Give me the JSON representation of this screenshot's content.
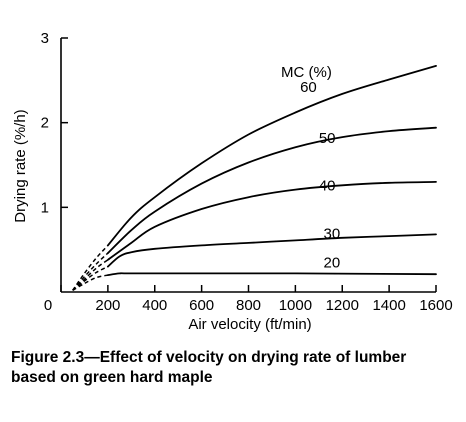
{
  "chart_data": {
    "type": "line",
    "title": "",
    "xlabel": "Air velocity (ft/min)",
    "ylabel": "Drying rate (%/h)",
    "xlim": [
      0,
      1600
    ],
    "ylim": [
      0,
      3
    ],
    "x_ticks": [
      0,
      200,
      400,
      600,
      800,
      1000,
      1200,
      1400,
      1600
    ],
    "y_ticks": [
      1,
      2,
      3
    ],
    "legend_title": "MC (%)",
    "grid": false,
    "series": [
      {
        "name": "60",
        "dashed_points": [
          [
            50,
            0.02
          ],
          [
            100,
            0.22
          ],
          [
            150,
            0.4
          ],
          [
            200,
            0.55
          ]
        ],
        "points": [
          [
            200,
            0.55
          ],
          [
            300,
            0.88
          ],
          [
            400,
            1.12
          ],
          [
            600,
            1.52
          ],
          [
            800,
            1.86
          ],
          [
            1000,
            2.12
          ],
          [
            1200,
            2.34
          ],
          [
            1400,
            2.51
          ],
          [
            1600,
            2.67
          ]
        ]
      },
      {
        "name": "50",
        "dashed_points": [
          [
            50,
            0.02
          ],
          [
            100,
            0.18
          ],
          [
            150,
            0.33
          ],
          [
            200,
            0.46
          ]
        ],
        "points": [
          [
            200,
            0.46
          ],
          [
            300,
            0.73
          ],
          [
            400,
            0.95
          ],
          [
            600,
            1.28
          ],
          [
            800,
            1.53
          ],
          [
            1000,
            1.71
          ],
          [
            1200,
            1.83
          ],
          [
            1400,
            1.9
          ],
          [
            1600,
            1.94
          ]
        ]
      },
      {
        "name": "40",
        "dashed_points": [
          [
            50,
            0.02
          ],
          [
            100,
            0.15
          ],
          [
            150,
            0.28
          ],
          [
            200,
            0.38
          ]
        ],
        "points": [
          [
            200,
            0.38
          ],
          [
            300,
            0.58
          ],
          [
            400,
            0.77
          ],
          [
            600,
            0.98
          ],
          [
            800,
            1.12
          ],
          [
            1000,
            1.21
          ],
          [
            1200,
            1.26
          ],
          [
            1400,
            1.29
          ],
          [
            1600,
            1.3
          ]
        ]
      },
      {
        "name": "30",
        "dashed_points": [
          [
            50,
            0.02
          ],
          [
            100,
            0.13
          ],
          [
            150,
            0.23
          ],
          [
            200,
            0.3
          ]
        ],
        "points": [
          [
            200,
            0.3
          ],
          [
            250,
            0.42
          ],
          [
            300,
            0.47
          ],
          [
            400,
            0.51
          ],
          [
            600,
            0.55
          ],
          [
            800,
            0.58
          ],
          [
            1000,
            0.61
          ],
          [
            1200,
            0.64
          ],
          [
            1400,
            0.66
          ],
          [
            1600,
            0.68
          ]
        ]
      },
      {
        "name": "20",
        "dashed_points": [
          [
            50,
            0.02
          ],
          [
            100,
            0.1
          ],
          [
            150,
            0.17
          ],
          [
            200,
            0.2
          ]
        ],
        "points": [
          [
            200,
            0.2
          ],
          [
            250,
            0.22
          ],
          [
            300,
            0.22
          ],
          [
            600,
            0.22
          ],
          [
            1000,
            0.22
          ],
          [
            1600,
            0.21
          ]
        ]
      }
    ]
  },
  "caption": {
    "line1": "Figure 2.3—Effect of velocity on drying rate of lumber",
    "line2": "based on green hard maple"
  }
}
